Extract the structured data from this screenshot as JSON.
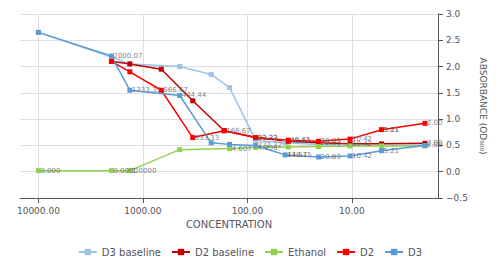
{
  "chart_data": {
    "type": "line",
    "xlabel": "CONCENTRATION",
    "ylabel": "ABSORBANCE (OD₆₀₀)",
    "log": "x",
    "grid": true,
    "legend": "bottom",
    "marker": "square",
    "xlim": [
      15000,
      1.5
    ],
    "xticks": [
      {
        "value": 10000,
        "label": "10000.00"
      },
      {
        "value": 1000,
        "label": "1000.00"
      },
      {
        "value": 100,
        "label": "100.00"
      },
      {
        "value": 10,
        "label": "10.00"
      }
    ],
    "ylim": [
      -0.5,
      3.0
    ],
    "yticks": [
      {
        "value": -0.5,
        "label": "−0.5"
      },
      {
        "value": 0.0,
        "label": "0.0"
      },
      0.5,
      {
        "value": 1.0,
        "label": "1.0"
      },
      1.5,
      {
        "value": 2.0,
        "label": "2.0"
      },
      2.5,
      {
        "value": 3.0,
        "label": "3.0"
      }
    ],
    "series": [
      {
        "name": "D3 baseline",
        "color": "#9DC3E6",
        "x": [
          10000.0,
          2000.07,
          1333.33,
          444.44,
          222.22,
          148.15,
          83.33,
          43.57,
          20.83,
          10.42,
          5.21,
          2.0
        ],
        "values": [
          2.65,
          2.18,
          2.05,
          2.0,
          1.85,
          1.6,
          0.6,
          0.55,
          0.52,
          0.5,
          0.5,
          0.51
        ]
      },
      {
        "name": "D2 baseline",
        "color": "#C00000",
        "x": [
          2000.07,
          1333.33,
          666.67,
          333.33,
          166.67,
          83.33,
          40.63,
          20.83,
          10.42,
          5.21,
          2.0
        ],
        "values": [
          2.1,
          2.05,
          1.95,
          1.35,
          0.78,
          0.65,
          0.58,
          0.55,
          0.53,
          0.53,
          0.54
        ]
      },
      {
        "name": "Ethanol",
        "color": "#92D050",
        "x": [
          10000.0,
          2000.07,
          1333.33,
          444.44,
          148.15,
          83.33,
          40.63,
          20.83,
          10.42,
          5.21,
          2.0
        ],
        "values": [
          0.02,
          0.02,
          0.02,
          0.42,
          0.44,
          0.46,
          0.47,
          0.48,
          0.49,
          0.49,
          0.49
        ]
      },
      {
        "name": "D2",
        "color": "#FF0000",
        "x": [
          2000.07,
          1333.33,
          666.67,
          333.33,
          166.67,
          83.33,
          40.63,
          20.83,
          10.42,
          5.21,
          2.0
        ],
        "values": [
          2.1,
          1.9,
          1.55,
          0.65,
          0.78,
          0.65,
          0.6,
          0.58,
          0.62,
          0.8,
          0.92
        ]
      },
      {
        "name": "D3",
        "color": "#5B9BD5",
        "x": [
          10000.0,
          2000.07,
          1333.33,
          444.44,
          222.22,
          148.15,
          83.33,
          43.57,
          20.83,
          10.42,
          5.21,
          2.0
        ],
        "values": [
          2.65,
          2.2,
          1.55,
          1.45,
          0.55,
          0.52,
          0.5,
          0.32,
          0.28,
          0.3,
          0.4,
          0.5
        ]
      }
    ],
    "annotations": [
      {
        "x": 2000.07,
        "y": 2.2,
        "text": "2000.07"
      },
      {
        "x": 1333.33,
        "y": 1.55,
        "text": "1333.33"
      },
      {
        "x": 444.44,
        "y": 1.45,
        "text": "444.44"
      },
      {
        "x": 83.33,
        "y": 0.5,
        "text": "222.22"
      },
      {
        "x": 43.57,
        "y": 0.32,
        "text": "148.15"
      },
      {
        "x": 43.57,
        "y": 0.32,
        "text": "43.57"
      },
      {
        "x": 20.83,
        "y": 0.28,
        "text": "20.83"
      },
      {
        "x": 10.42,
        "y": 0.3,
        "text": "10.42"
      },
      {
        "x": 5.21,
        "y": 0.4,
        "text": "5.21"
      },
      {
        "x": 2.0,
        "y": 0.5,
        "text": "2.00"
      },
      {
        "x": 666.67,
        "y": 1.55,
        "text": "666.67"
      },
      {
        "x": 333.33,
        "y": 0.65,
        "text": "333.33"
      },
      {
        "x": 166.67,
        "y": 0.78,
        "text": "166.67"
      },
      {
        "x": 83.33,
        "y": 0.65,
        "text": "83.33"
      },
      {
        "x": 40.63,
        "y": 0.6,
        "text": "40.63"
      },
      {
        "x": 20.83,
        "y": 0.58,
        "text": "20.83"
      },
      {
        "x": 10.42,
        "y": 0.62,
        "text": "10.42"
      },
      {
        "x": 5.21,
        "y": 0.8,
        "text": "5.21"
      },
      {
        "x": 2.0,
        "y": 0.92,
        "text": "2.00"
      },
      {
        "x": 10000.0,
        "y": 0.02,
        "text": "0.000"
      },
      {
        "x": 2000.07,
        "y": 0.02,
        "text": "0.0000"
      },
      {
        "x": 1333.33,
        "y": 0.02,
        "text": "1.0000"
      },
      {
        "x": 148.15,
        "y": 0.44,
        "text": "4.607"
      },
      {
        "x": 83.33,
        "y": 0.46,
        "text": "4.956"
      },
      {
        "x": 83.33,
        "y": 0.65,
        "text": "83.33"
      },
      {
        "x": 40.63,
        "y": 0.58,
        "text": "40.63"
      },
      {
        "x": 20.83,
        "y": 0.55,
        "text": "20.83"
      },
      {
        "x": 10.42,
        "y": 0.53,
        "text": "10.42"
      },
      {
        "x": 5.21,
        "y": 0.8,
        "text": "5.21"
      },
      {
        "x": 2.0,
        "y": 0.54,
        "text": "2.00"
      }
    ]
  }
}
